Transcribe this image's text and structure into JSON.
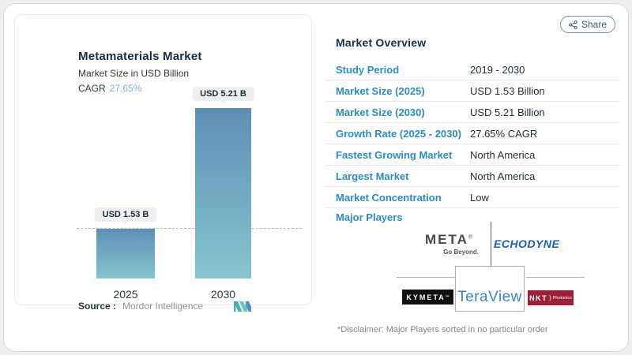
{
  "header": {
    "share_label": "Share"
  },
  "chart_panel": {
    "title": "Metamaterials Market",
    "subtitle": "Market Size in USD Billion",
    "cagr_label": "CAGR",
    "cagr_value": "27.65%",
    "source_label": "Source :",
    "source_value": "Mordor Intelligence"
  },
  "chart_data": {
    "type": "bar",
    "title": "Metamaterials Market",
    "subtitle": "Market Size in USD Billion",
    "unit": "USD Billion",
    "cagr": "27.65%",
    "categories": [
      "2025",
      "2030"
    ],
    "values": [
      1.53,
      5.21
    ],
    "bar_labels": [
      "USD 1.53 B",
      "USD 5.21 B"
    ],
    "ylim": [
      0,
      5.21
    ],
    "reference_line_at": 1.53,
    "grid": false,
    "legend": false,
    "bar_gradient": [
      "#5d8fb4",
      "#86c5cf"
    ]
  },
  "overview": {
    "heading": "Market Overview",
    "rows": [
      {
        "label": "Study Period",
        "value": "2019 - 2030"
      },
      {
        "label": "Market Size (2025)",
        "value": "USD 1.53 Billion"
      },
      {
        "label": "Market Size (2030)",
        "value": "USD 5.21 Billion"
      },
      {
        "label": "Growth Rate (2025 - 2030)",
        "value": "27.65% CAGR"
      },
      {
        "label": "Fastest Growing Market",
        "value": "North America"
      },
      {
        "label": "Largest Market",
        "value": "North America"
      },
      {
        "label": "Market Concentration",
        "value": "Low"
      }
    ],
    "major_players_label": "Major Players",
    "players": {
      "meta": {
        "name": "META",
        "reg": "®",
        "tagline": "Go Beyond."
      },
      "echodyne": {
        "name": "ECHODYNE"
      },
      "kymeta": {
        "name": "KYMETA",
        "tm": "™"
      },
      "teraview": {
        "name": "TeraView"
      },
      "nkt": {
        "name": "NKT",
        "bracket": ")",
        "sub": "Photonics"
      }
    },
    "disclaimer": "*Disclaimer: Major Players sorted in no particular order"
  },
  "colors": {
    "accent_blue": "#2d8cc3",
    "heading_navy": "#16324a",
    "bar_top": "#5d8fb4",
    "bar_bottom": "#86c5cf",
    "cagr_value_blue": "#7fb3d2",
    "echodyne_blue": "#1560b0",
    "teraview_blue": "#3c85c0",
    "nkt_maroon": "#9b2038"
  }
}
